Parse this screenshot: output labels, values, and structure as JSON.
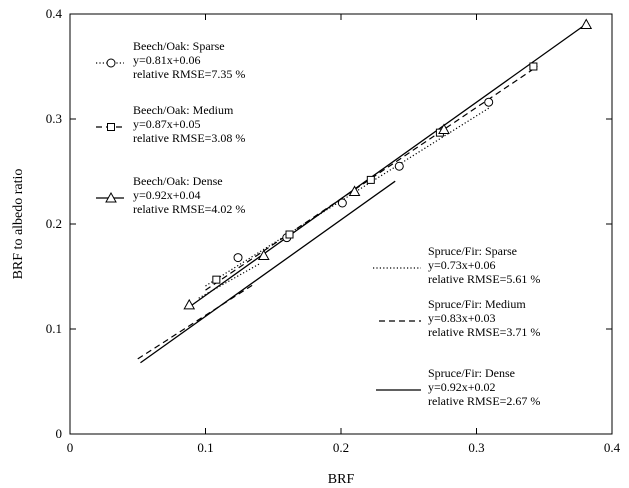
{
  "chart_data": {
    "type": "scatter",
    "xlabel": "BRF",
    "ylabel": "BRF to albedo ratio",
    "xlim": [
      0,
      0.4
    ],
    "ylim": [
      0,
      0.4
    ],
    "x_ticks": [
      "0",
      "0.1",
      "0.2",
      "0.3",
      "0.4"
    ],
    "y_ticks": [
      "0",
      "0.1",
      "0.2",
      "0.3",
      "0.4"
    ],
    "grid": false,
    "series": [
      {
        "name": "Beech/Oak: Sparse",
        "equation": "y=0.81x+0.06",
        "rmse": "relative RMSE=7.35 %",
        "marker": "circle",
        "line_style": "dotted",
        "fit": {
          "slope": 0.81,
          "intercept": 0.06,
          "x_range": [
            0.1,
            0.31
          ]
        },
        "points": [
          [
            0.124,
            0.168
          ],
          [
            0.16,
            0.187
          ],
          [
            0.201,
            0.22
          ],
          [
            0.243,
            0.255
          ],
          [
            0.309,
            0.316
          ]
        ]
      },
      {
        "name": "Beech/Oak: Medium",
        "equation": "y=0.87x+0.05",
        "rmse": "relative RMSE=3.08 %",
        "marker": "square",
        "line_style": "dashed",
        "fit": {
          "slope": 0.87,
          "intercept": 0.05,
          "x_range": [
            0.1,
            0.345
          ]
        },
        "points": [
          [
            0.108,
            0.147
          ],
          [
            0.162,
            0.19
          ],
          [
            0.222,
            0.242
          ],
          [
            0.273,
            0.287
          ],
          [
            0.342,
            0.35
          ]
        ]
      },
      {
        "name": "Beech/Oak: Dense",
        "equation": "y=0.92x+0.04",
        "rmse": "relative RMSE=4.02 %",
        "marker": "triangle",
        "line_style": "solid",
        "fit": {
          "slope": 0.92,
          "intercept": 0.04,
          "x_range": [
            0.088,
            0.382
          ]
        },
        "points": [
          [
            0.088,
            0.123
          ],
          [
            0.143,
            0.17
          ],
          [
            0.21,
            0.231
          ],
          [
            0.276,
            0.29
          ],
          [
            0.381,
            0.39
          ]
        ]
      },
      {
        "name": "Spruce/Fir: Sparse",
        "equation": "y=0.73x+0.06",
        "rmse": "relative RMSE=5.61 %",
        "marker": "none",
        "line_style": "dotted",
        "fit": {
          "slope": 0.73,
          "intercept": 0.06,
          "x_range": [
            0.095,
            0.14
          ]
        },
        "points": []
      },
      {
        "name": "Spruce/Fir: Medium",
        "equation": "y=0.83x+0.03",
        "rmse": "relative RMSE=3.71 %",
        "marker": "none",
        "line_style": "dashed",
        "fit": {
          "slope": 0.83,
          "intercept": 0.03,
          "x_range": [
            0.05,
            0.135
          ]
        },
        "points": []
      },
      {
        "name": "Spruce/Fir: Dense",
        "equation": "y=0.92x+0.02",
        "rmse": "relative RMSE=2.67 %",
        "marker": "none",
        "line_style": "solid",
        "fit": {
          "slope": 0.92,
          "intercept": 0.02,
          "x_range": [
            0.052,
            0.24
          ]
        },
        "points": []
      }
    ]
  }
}
